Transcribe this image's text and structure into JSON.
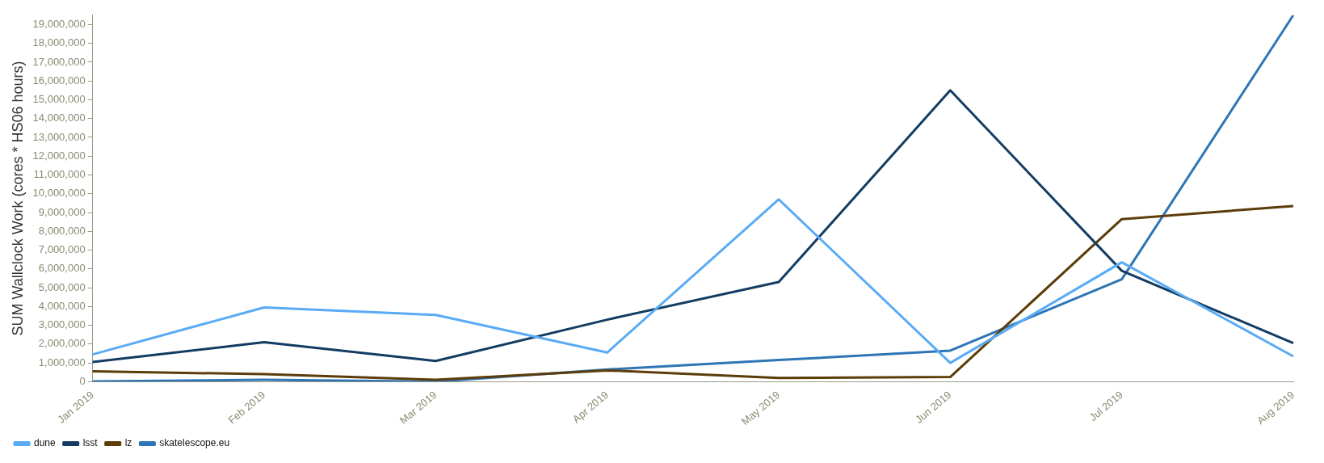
{
  "chart_data": {
    "type": "line",
    "ylabel": "SUM Wallclock Work (cores * HS06 hours)",
    "categories": [
      "Jan 2019",
      "Feb 2019",
      "Mar 2019",
      "Apr 2019",
      "May 2019",
      "Jun 2019",
      "Jul 2019",
      "Aug 2019"
    ],
    "series": [
      {
        "name": "dune",
        "color": "#5aabf5",
        "values": [
          1450000,
          3950000,
          3550000,
          1550000,
          9700000,
          1000000,
          6350000,
          1350000
        ]
      },
      {
        "name": "lsst",
        "color": "#133c63",
        "values": [
          1050000,
          2100000,
          1100000,
          3300000,
          5300000,
          15500000,
          5900000,
          2050000
        ]
      },
      {
        "name": "lz",
        "color": "#5c3d0a",
        "values": [
          550000,
          400000,
          100000,
          600000,
          200000,
          250000,
          8650000,
          9350000
        ]
      },
      {
        "name": "skatelescope.eu",
        "color": "#2e75b6",
        "values": [
          20000,
          100000,
          0,
          650000,
          1150000,
          1650000,
          5450000,
          19500000
        ]
      }
    ],
    "ylim": [
      0,
      19500000
    ],
    "yticks": [
      0,
      {
        "value": 1000000,
        "label": "1,000,000"
      },
      {
        "value": 2000000,
        "label": "2,000,000"
      },
      {
        "value": 3000000,
        "label": "3,000,000"
      },
      {
        "value": 4000000,
        "label": "4,000,000"
      },
      {
        "value": 5000000,
        "label": "5,000,000"
      },
      {
        "value": 6000000,
        "label": "6,000,000"
      },
      {
        "value": 7000000,
        "label": "7,000,000"
      },
      {
        "value": 8000000,
        "label": "8,000,000"
      },
      {
        "value": 9000000,
        "label": "9,000,000"
      },
      {
        "value": 10000000,
        "label": "10,000,000"
      },
      {
        "value": 11000000,
        "label": "11,000,000"
      },
      {
        "value": 12000000,
        "label": "12,000,000"
      },
      {
        "value": 13000000,
        "label": "13,000,000"
      },
      {
        "value": 14000000,
        "label": "14,000,000"
      },
      {
        "value": 15000000,
        "label": "15,000,000"
      },
      {
        "value": 16000000,
        "label": "16,000,000"
      },
      {
        "value": 17000000,
        "label": "17,000,000"
      },
      {
        "value": 18000000,
        "label": "18,000,000"
      },
      {
        "value": 19000000,
        "label": "19,000,000"
      }
    ],
    "grid": false,
    "legend": "bottom left",
    "marker": "none",
    "line_style": "solid"
  }
}
